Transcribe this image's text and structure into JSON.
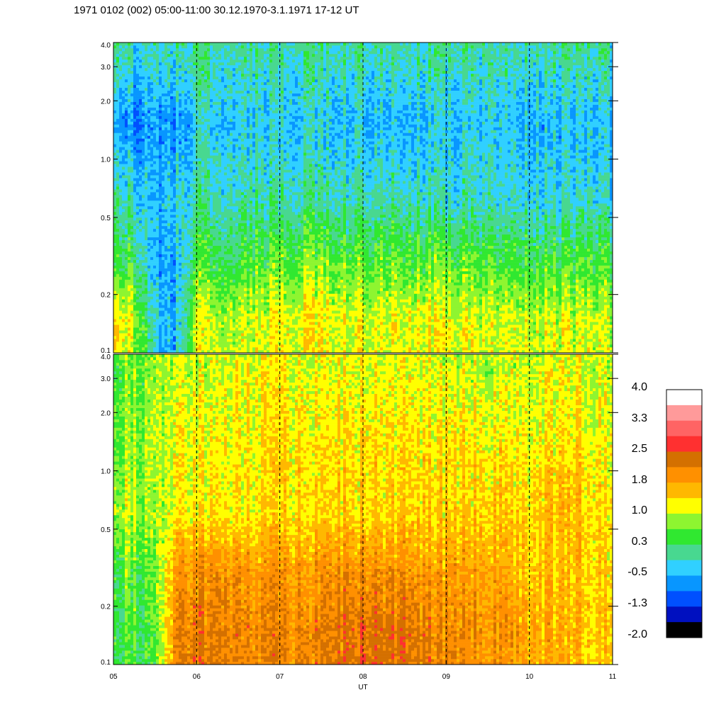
{
  "title": "1971 0102 (002) 05:00-11:00 30.12.1970-3.1.1971  17-12 UT",
  "chart_data": {
    "type": "heatmap",
    "title": "1971 0102 (002) 05:00-11:00 30.12.1970-3.1.1971  17-12 UT",
    "xlabel": "UT",
    "x_ticks": [
      "05",
      "06",
      "07",
      "08",
      "09",
      "10",
      "11"
    ],
    "xlim": [
      5,
      11
    ],
    "y_scale": "log",
    "ylim": [
      0.1,
      4.0
    ],
    "y_ticks": [
      0.1,
      0.2,
      0.5,
      1.0,
      2.0,
      3.0,
      4.0
    ],
    "y_tick_labels": [
      "0.1",
      "0.2",
      "0.5",
      "1.0",
      "2.0",
      "3.0",
      "4.0"
    ],
    "vertical_dashed_lines_at": [
      6,
      7,
      8,
      9,
      10
    ],
    "colorbar": {
      "labels": [
        "4.0",
        "3.3",
        "2.5",
        "1.8",
        "1.0",
        "0.3",
        "-0.5",
        "-1.3",
        "-2.0"
      ],
      "colors": [
        "#ffffff",
        "#ff9a9a",
        "#ff6464",
        "#ff3030",
        "#d47000",
        "#ff9000",
        "#ffb800",
        "#ffff00",
        "#8ef530",
        "#30e830",
        "#48d890",
        "#30d0ff",
        "#0896ff",
        "#0050ff",
        "#0010c0",
        "#000000"
      ]
    },
    "panels": [
      {
        "name": "upper",
        "x": [
          5.0,
          5.25,
          5.5,
          5.75,
          6.0,
          6.5,
          7.0,
          7.5,
          8.0,
          8.5,
          9.0,
          9.5,
          10.0,
          10.5,
          11.0
        ],
        "y": [
          0.15,
          0.3,
          0.6,
          1.5,
          3.5
        ],
        "z": [
          [
            1.3,
            1.0,
            -0.3,
            -0.5,
            1.0,
            1.0,
            1.2,
            1.2,
            1.1,
            1.2,
            1.1,
            1.1,
            1.1,
            1.0,
            1.0
          ],
          [
            0.3,
            0.3,
            -0.6,
            -0.5,
            0.4,
            0.4,
            0.6,
            0.7,
            0.6,
            0.6,
            0.6,
            0.5,
            0.5,
            0.4,
            0.4
          ],
          [
            0.1,
            -0.1,
            -0.5,
            -0.2,
            0.0,
            0.0,
            0.0,
            0.0,
            0.0,
            0.0,
            -0.1,
            -0.1,
            -0.1,
            -0.2,
            -0.2
          ],
          [
            -0.6,
            -0.8,
            -0.7,
            -0.7,
            -0.3,
            -0.3,
            -0.3,
            -0.3,
            -0.4,
            -0.4,
            -0.4,
            -0.3,
            -0.4,
            -0.5,
            -0.5
          ],
          [
            0.0,
            -0.2,
            -0.1,
            -0.1,
            0.1,
            0.0,
            0.0,
            0.0,
            0.0,
            0.0,
            0.0,
            0.0,
            0.0,
            0.0,
            0.0
          ]
        ]
      },
      {
        "name": "lower",
        "x": [
          5.0,
          5.25,
          5.5,
          5.75,
          6.0,
          6.5,
          7.0,
          7.5,
          8.0,
          8.5,
          9.0,
          9.5,
          10.0,
          10.5,
          11.0
        ],
        "y": [
          0.15,
          0.3,
          0.6,
          1.5,
          3.5
        ],
        "z": [
          [
            0.5,
            0.5,
            0.4,
            2.0,
            2.2,
            2.1,
            2.0,
            2.1,
            2.3,
            2.2,
            2.0,
            2.0,
            1.7,
            1.6,
            1.5
          ],
          [
            0.6,
            0.6,
            0.5,
            1.8,
            2.0,
            1.9,
            1.8,
            1.9,
            2.0,
            1.9,
            1.8,
            1.8,
            1.5,
            1.5,
            1.4
          ],
          [
            1.0,
            1.0,
            0.7,
            1.2,
            1.3,
            1.3,
            1.3,
            1.4,
            1.4,
            1.4,
            1.4,
            1.5,
            1.4,
            1.6,
            1.3
          ],
          [
            0.7,
            0.8,
            0.8,
            1.1,
            1.2,
            1.2,
            1.3,
            1.3,
            1.3,
            1.3,
            1.3,
            1.3,
            1.2,
            1.3,
            1.2
          ],
          [
            0.6,
            0.7,
            0.7,
            1.0,
            1.0,
            1.1,
            1.1,
            1.1,
            1.1,
            1.1,
            1.0,
            1.0,
            1.0,
            1.1,
            1.0
          ]
        ]
      }
    ]
  }
}
